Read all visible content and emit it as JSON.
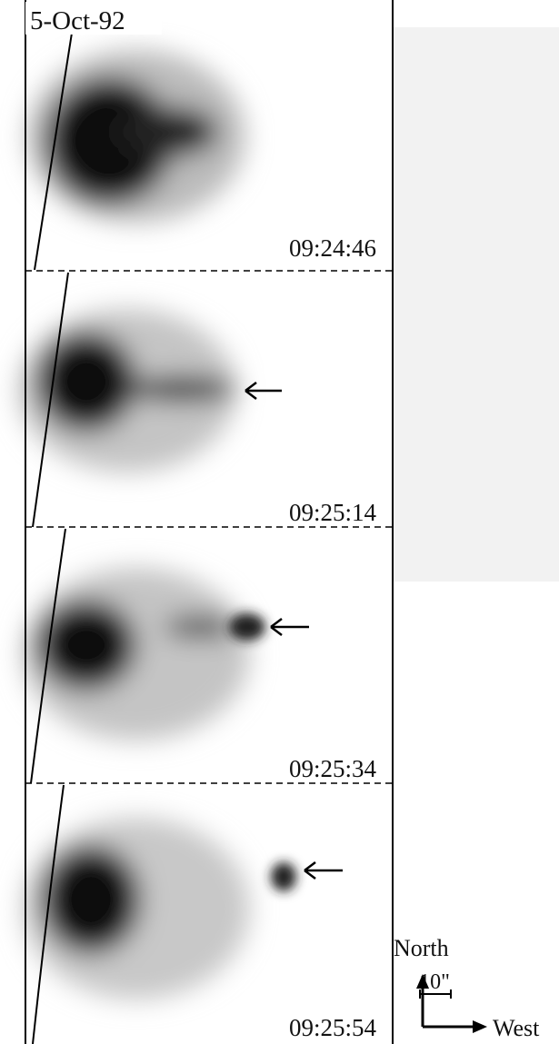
{
  "date": "5-Oct-92",
  "panels": [
    {
      "time": "09:24:46"
    },
    {
      "time": "09:25:14"
    },
    {
      "time": "09:25:34"
    },
    {
      "time": "09:25:54"
    }
  ],
  "scale_bar": "10\"",
  "compass": {
    "north": "North",
    "west": "West"
  }
}
